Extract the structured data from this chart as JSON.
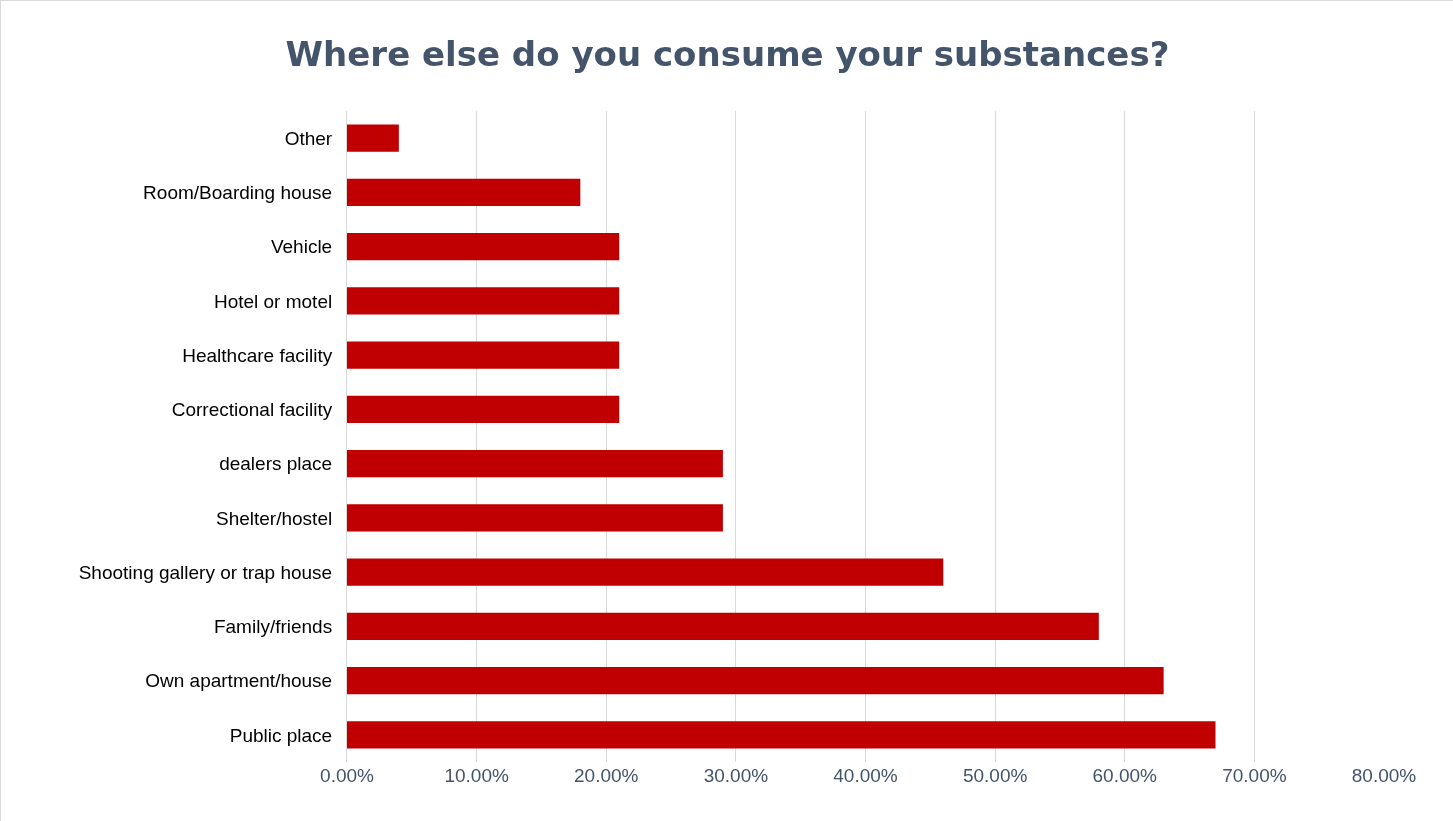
{
  "chart_data": {
    "type": "bar",
    "orientation": "horizontal",
    "title": "Where else do you consume your substances?",
    "categories": [
      "Other",
      "Room/Boarding house",
      "Vehicle",
      "Hotel or motel",
      "Healthcare facility",
      "Correctional facility",
      "dealers place",
      "Shelter/hostel",
      "Shooting gallery or trap house",
      "Family/friends",
      "Own apartment/house",
      "Public place"
    ],
    "values": [
      4,
      18,
      21,
      21,
      21,
      21,
      29,
      29,
      46,
      58,
      63,
      67
    ],
    "color": "#c00000",
    "xlim": [
      0,
      80
    ],
    "xticks": [
      {
        "value": 0,
        "label": "0.00%"
      },
      {
        "value": 10,
        "label": "10.00%"
      },
      {
        "value": 20,
        "label": "20.00%"
      },
      {
        "value": 30,
        "label": "30.00%"
      },
      {
        "value": 40,
        "label": "40.00%"
      },
      {
        "value": 50,
        "label": "50.00%"
      },
      {
        "value": 60,
        "label": "60.00%"
      },
      {
        "value": 70,
        "label": "70.00%"
      },
      {
        "value": 80,
        "label": "80.00%"
      }
    ],
    "grid": "x"
  }
}
